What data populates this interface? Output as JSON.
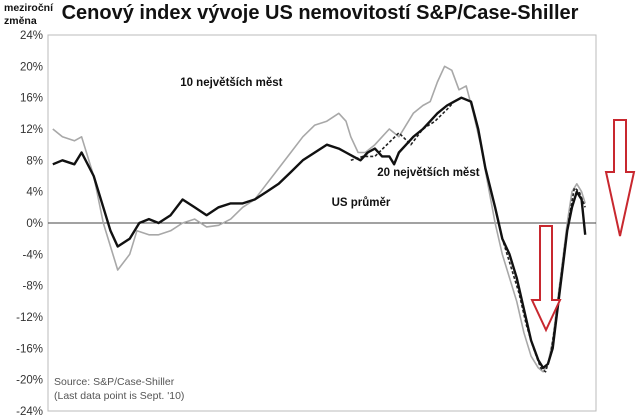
{
  "chart_data": {
    "type": "line",
    "title": "Cenový index vývoje US nemovitostí S&P/Case-Shiller",
    "ylabel": "meziroční změna",
    "ylim": [
      -24,
      24
    ],
    "yticks": [
      "24%",
      "20%",
      "16%",
      "12%",
      "8%",
      "4%",
      "0%",
      "-4%",
      "-8%",
      "-12%",
      "-16%",
      "-20%",
      "-24%"
    ],
    "grid": false,
    "xlim": [
      1988.4,
      2011.2
    ],
    "series": [
      {
        "name": "10 největších měst",
        "color": "#a8a8a8",
        "x": [
          1988.6,
          1989.0,
          1989.5,
          1989.8,
          1990.3,
          1990.7,
          1991.0,
          1991.3,
          1991.8,
          1992.1,
          1992.6,
          1993.0,
          1993.5,
          1994.0,
          1994.5,
          1995.0,
          1995.5,
          1996.0,
          1996.5,
          1997.0,
          1997.5,
          1998.0,
          1998.5,
          1999.0,
          1999.5,
          2000.0,
          2000.5,
          2000.8,
          2001.0,
          2001.3,
          2001.6,
          2002.0,
          2002.3,
          2002.6,
          2003.0,
          2003.3,
          2003.6,
          2004.0,
          2004.3,
          2004.6,
          2004.9,
          2005.2,
          2005.5,
          2005.8,
          2006.1,
          2006.4,
          2006.7,
          2007.0,
          2007.3,
          2007.6,
          2007.9,
          2008.2,
          2008.5,
          2008.8,
          2009.0,
          2009.2,
          2009.4,
          2009.6,
          2009.8,
          2010.0,
          2010.2,
          2010.4,
          2010.6,
          2010.75
        ],
        "values": [
          12,
          11,
          10.5,
          11,
          6,
          0,
          -3,
          -6,
          -4,
          -1,
          -1.5,
          -1.5,
          -1,
          0,
          0.5,
          -0.5,
          -0.3,
          0.5,
          2,
          3,
          5,
          7,
          9,
          11,
          12.5,
          13,
          14,
          13,
          11,
          9,
          9,
          10,
          11,
          12,
          11,
          12.5,
          14,
          15,
          15.5,
          18,
          20,
          19.5,
          17,
          17.5,
          14,
          10,
          5,
          0,
          -4,
          -7,
          -10,
          -14,
          -17,
          -18.5,
          -19,
          -18,
          -15,
          -10,
          -5,
          0,
          4,
          5,
          4,
          2.5
        ]
      },
      {
        "name": "20 největších měst",
        "color": "#222222",
        "dash": "3,2",
        "x": [
          2001.0,
          2001.5,
          2002.0,
          2002.5,
          2003.0,
          2003.5,
          2004.0,
          2004.5,
          2005.0,
          2005.3,
          2005.6,
          2006.0,
          2006.3,
          2006.6,
          2007.0,
          2007.3,
          2007.6,
          2008.0,
          2008.3,
          2008.6,
          2008.9,
          2009.1,
          2009.3,
          2009.5,
          2009.7,
          2009.9,
          2010.1,
          2010.3,
          2010.5,
          2010.75
        ],
        "values": [
          8,
          8.5,
          8.5,
          10,
          11.5,
          10,
          12,
          13,
          14.5,
          15.5,
          16,
          15.5,
          12,
          7,
          2,
          -2,
          -5,
          -9,
          -13,
          -16,
          -18.5,
          -19,
          -17,
          -13,
          -8,
          -3,
          1,
          4.5,
          4,
          2
        ]
      },
      {
        "name": "US průměr",
        "color": "#111111",
        "x": [
          1988.6,
          1989.0,
          1989.5,
          1989.8,
          1990.3,
          1990.7,
          1991.0,
          1991.3,
          1991.8,
          1992.2,
          1992.6,
          1993.0,
          1993.5,
          1994.0,
          1994.5,
          1995.0,
          1995.5,
          1996.0,
          1996.5,
          1997.0,
          1997.5,
          1998.0,
          1998.5,
          1999.0,
          1999.5,
          2000.0,
          2000.5,
          2000.8,
          2001.1,
          2001.4,
          2001.7,
          2002.0,
          2002.3,
          2002.6,
          2002.8,
          2003.0,
          2003.3,
          2003.6,
          2004.0,
          2004.3,
          2004.6,
          2005.0,
          2005.3,
          2005.6,
          2006.0,
          2006.3,
          2006.6,
          2007.0,
          2007.3,
          2007.6,
          2007.9,
          2008.2,
          2008.5,
          2008.8,
          2009.0,
          2009.2,
          2009.4,
          2009.6,
          2009.8,
          2010.0,
          2010.2,
          2010.4,
          2010.6,
          2010.75
        ],
        "values": [
          7.5,
          8,
          7.5,
          9,
          6,
          2,
          -1,
          -3,
          -2,
          0,
          0.5,
          0,
          1,
          3,
          2,
          1,
          2,
          2.5,
          2.5,
          3,
          4,
          5,
          6.5,
          8,
          9,
          10,
          9.5,
          9,
          8.5,
          8,
          9,
          9.5,
          8.5,
          8.5,
          7.5,
          9,
          10,
          11,
          12,
          13,
          14,
          15,
          15.5,
          16,
          15.5,
          12,
          7,
          2,
          -2,
          -4,
          -7,
          -11,
          -15,
          -17.5,
          -18.5,
          -18,
          -16,
          -11,
          -6,
          -1,
          2,
          4,
          3,
          -1.5
        ]
      }
    ],
    "annotations": [
      {
        "text": "10 největších měst",
        "x": 1993.9,
        "y": 17.5
      },
      {
        "text": "20 největších měst",
        "x": 2002.1,
        "y": 6
      },
      {
        "text": "US průměr",
        "x": 2000.2,
        "y": 2.2
      }
    ],
    "source_lines": [
      "Source: S&P/Case-Shiller",
      "(Last data point is Sept. '10)"
    ]
  }
}
